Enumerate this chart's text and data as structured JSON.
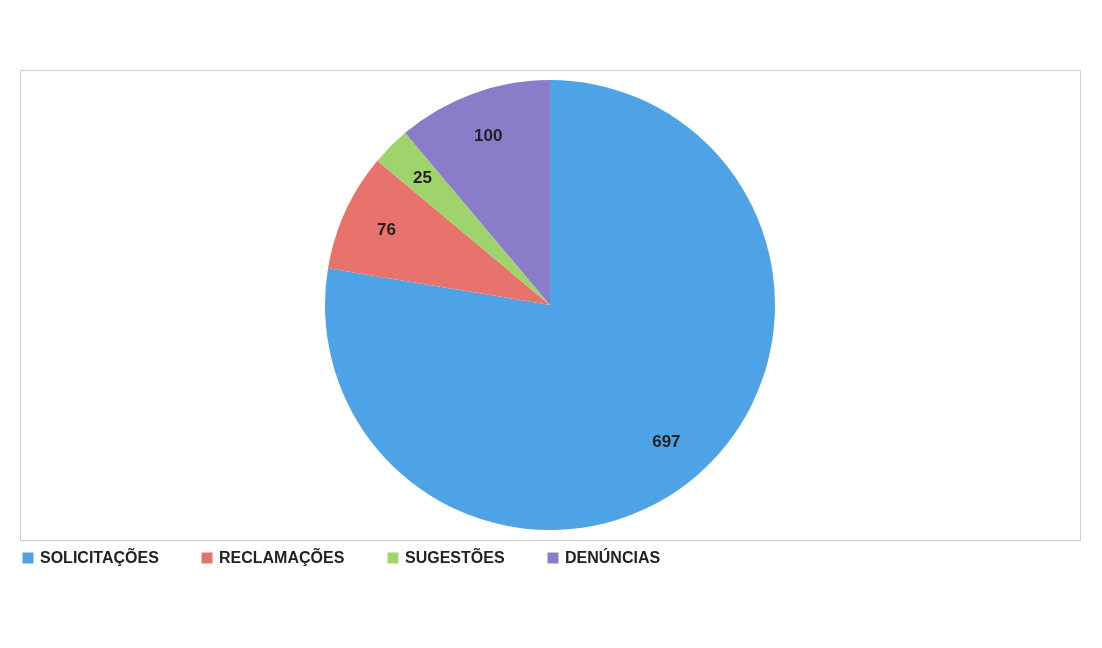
{
  "chart_data": {
    "type": "pie",
    "categories": [
      "SOLICITAÇÕES",
      "RECLAMAÇÕES",
      "SUGESTÕES",
      "DENÚNCIAS"
    ],
    "values": [
      697,
      76,
      25,
      100
    ],
    "colors": [
      "#4da3e6",
      "#e8736c",
      "#9fd36b",
      "#8a7cc8"
    ],
    "data_labels": true,
    "legend": "bottom"
  }
}
